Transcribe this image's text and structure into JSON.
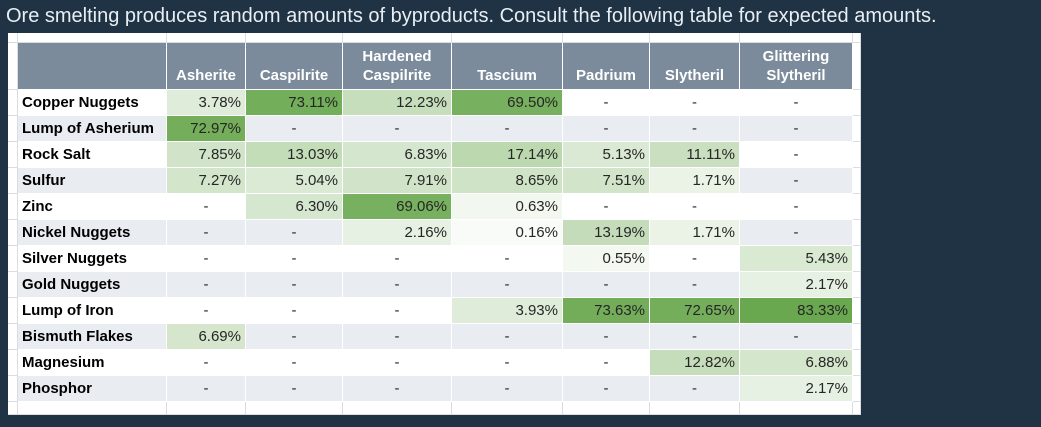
{
  "title": "Ore smelting produces random amounts of byproducts. Consult the following table for expected amounts.",
  "colors": {
    "page_background": "#1f3345",
    "title_text": "#e8eef3",
    "header_background": "#7b8b9b",
    "header_text": "#ffffff",
    "row_band_a": "#ffffff",
    "row_band_b": "#e9edf2",
    "gridline": "#d9dde2",
    "cell_border": "#ffffff",
    "label_text": "#000000",
    "value_text": "#262626",
    "heat_min_color": "#ffffff",
    "heat_max_color": "#6aa84f"
  },
  "chart_data": {
    "type": "heatmap",
    "title": "Ore smelting produces random amounts of byproducts. Consult the following table for expected amounts.",
    "unit": "%",
    "value_format": "two_decimals_percent",
    "empty_marker": "-",
    "columns": [
      "Asherite",
      "Caspilrite",
      "Hardened Caspilrite",
      "Tascium",
      "Padrium",
      "Slytheril",
      "Glittering Slytheril"
    ],
    "rows": [
      "Copper Nuggets",
      "Lump of Asherium",
      "Rock Salt",
      "Sulfur",
      "Zinc",
      "Nickel Nuggets",
      "Silver Nuggets",
      "Gold Nuggets",
      "Lump of Iron",
      "Bismuth Flakes",
      "Magnesium",
      "Phosphor"
    ],
    "values": [
      [
        3.78,
        73.11,
        12.23,
        69.5,
        null,
        null,
        null
      ],
      [
        72.97,
        null,
        null,
        null,
        null,
        null,
        null
      ],
      [
        7.85,
        13.03,
        6.83,
        17.14,
        5.13,
        11.11,
        null
      ],
      [
        7.27,
        5.04,
        7.91,
        8.65,
        7.51,
        1.71,
        null
      ],
      [
        null,
        6.3,
        69.06,
        0.63,
        null,
        null,
        null
      ],
      [
        null,
        null,
        2.16,
        0.16,
        13.19,
        1.71,
        null
      ],
      [
        null,
        null,
        null,
        null,
        0.55,
        null,
        5.43
      ],
      [
        null,
        null,
        null,
        null,
        null,
        null,
        2.17
      ],
      [
        null,
        null,
        null,
        3.93,
        73.63,
        72.65,
        83.33
      ],
      [
        6.69,
        null,
        null,
        null,
        null,
        null,
        null
      ],
      [
        null,
        null,
        null,
        null,
        null,
        12.82,
        6.88
      ],
      [
        null,
        null,
        null,
        null,
        null,
        null,
        2.17
      ]
    ],
    "color_scale": {
      "min_value": 0,
      "max_value": 83.33,
      "min_color": "#ffffff",
      "max_color": "#6aa84f",
      "interpolation": "sqrt"
    },
    "legend": "none",
    "row_banding": true
  }
}
